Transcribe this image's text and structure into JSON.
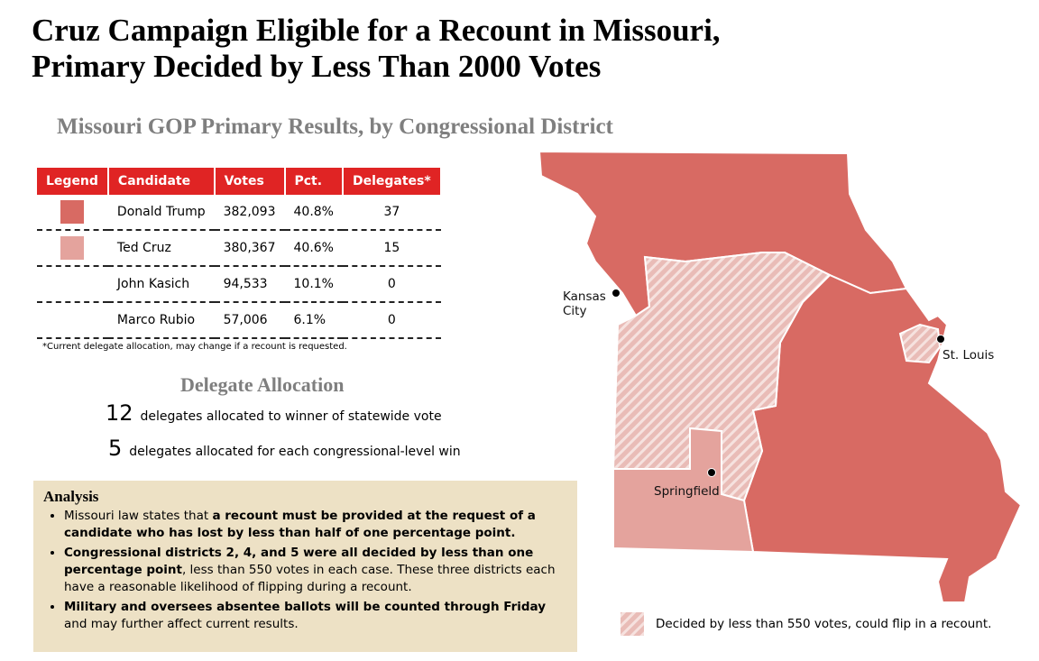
{
  "header": {
    "title_lines": [
      "Cruz Campaign Eligible for a Recount in Missouri,",
      "Primary Decided by Less Than 2000 Votes"
    ],
    "subtitle": "Missouri GOP Primary Results, by Congressional District"
  },
  "table": {
    "columns": [
      "Legend",
      "Candidate",
      "Votes",
      "Pct.",
      "Delegates*"
    ],
    "header_color": "#e02424",
    "rows": [
      {
        "swatch": "#d86a63",
        "cells": [
          "Donald Trump",
          "382,093",
          "40.8%",
          "37"
        ]
      },
      {
        "swatch": "#e4a39d",
        "cells": [
          "Ted Cruz",
          "380,367",
          "40.6%",
          "15"
        ]
      },
      {
        "swatch": null,
        "cells": [
          "John Kasich",
          "94,533",
          "10.1%",
          "0"
        ]
      },
      {
        "swatch": null,
        "cells": [
          "Marco Rubio",
          "57,006",
          "6.1%",
          "0"
        ]
      }
    ],
    "footnote": "*Current delegate allocation, may change if a recount is requested."
  },
  "allocation": {
    "title": "Delegate Allocation",
    "items": [
      {
        "number": "12",
        "text": "delegates allocated to winner of statewide vote"
      },
      {
        "number": "5",
        "text": "delegates allocated for each congressional-level win"
      }
    ]
  },
  "analysis": {
    "title": "Analysis",
    "bullets": [
      [
        {
          "text": "Missouri law states that ",
          "bold": false
        },
        {
          "text": "a recount must be provided at the request of a candidate who has lost by less than half of one percentage point.",
          "bold": true
        }
      ],
      [
        {
          "text": "Congressional districts 2, 4, and 5 were all decided by less than one percentage point",
          "bold": true
        },
        {
          "text": ", less than 550 votes in each case. These three districts each have a reasonable likelihood of flipping during a recount.",
          "bold": false
        }
      ],
      [
        {
          "text": "Military and oversees absentee ballots will be counted through Friday",
          "bold": true
        },
        {
          "text": " and may further affect current results.",
          "bold": false
        }
      ]
    ]
  },
  "map": {
    "cities": [
      "Kansas City",
      "St. Louis",
      "Springfield"
    ],
    "legend": "Decided by less than 550 votes, could flip in a recount."
  }
}
